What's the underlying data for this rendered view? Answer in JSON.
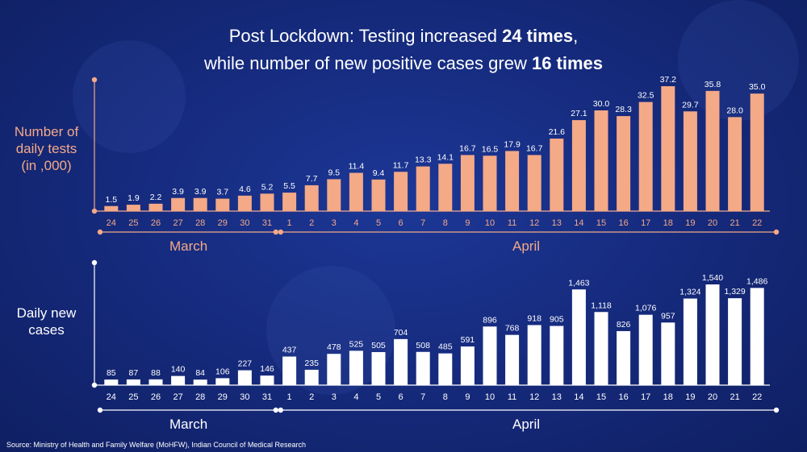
{
  "title": {
    "line1_prefix": "Post Lockdown: Testing increased ",
    "line1_bold": "24 times",
    "line1_suffix": ",",
    "line2_prefix": "while number of new positive cases grew ",
    "line2_bold": "16 times"
  },
  "colors": {
    "tests": "#f4a987",
    "cases": "#ffffff",
    "background": "#15297a"
  },
  "source": "Source: Ministry of Health and Family Welfare (MoHFW), Indian Council of Medical Research",
  "chart_data": [
    {
      "type": "bar",
      "name": "tests",
      "ylabel": "Number of daily tests (in ,000)",
      "ylabel_lines": [
        "Number of",
        "daily tests",
        "(in ,000)"
      ],
      "categories": [
        "24",
        "25",
        "26",
        "27",
        "28",
        "29",
        "30",
        "31",
        "1",
        "2",
        "3",
        "4",
        "5",
        "6",
        "7",
        "8",
        "9",
        "10",
        "11",
        "12",
        "13",
        "14",
        "15",
        "16",
        "17",
        "18",
        "19",
        "20",
        "21",
        "22"
      ],
      "values": [
        1.5,
        1.9,
        2.2,
        3.9,
        3.9,
        3.7,
        4.6,
        5.2,
        5.5,
        7.7,
        9.5,
        11.4,
        9.4,
        11.7,
        13.3,
        14.1,
        16.7,
        16.5,
        17.9,
        16.7,
        21.6,
        27.1,
        30.0,
        28.3,
        32.5,
        37.2,
        29.7,
        35.8,
        28.0,
        35.0
      ],
      "labels": [
        "1.5",
        "1.9",
        "2.2",
        "3.9",
        "3.9",
        "3.7",
        "4.6",
        "5.2",
        "5.5",
        "7.7",
        "9.5",
        "11.4",
        "9.4",
        "11.7",
        "13.3",
        "14.1",
        "16.7",
        "16.5",
        "17.9",
        "16.7",
        "21.6",
        "27.1",
        "30.0",
        "28.3",
        "32.5",
        "37.2",
        "29.7",
        "35.8",
        "28.0",
        "35.0"
      ],
      "months": [
        {
          "label": "March",
          "count": 8
        },
        {
          "label": "April",
          "count": 22
        }
      ]
    },
    {
      "type": "bar",
      "name": "cases",
      "ylabel": "Daily new cases",
      "ylabel_lines": [
        "Daily new",
        "cases"
      ],
      "categories": [
        "24",
        "25",
        "26",
        "27",
        "28",
        "29",
        "30",
        "31",
        "1",
        "2",
        "3",
        "4",
        "5",
        "6",
        "7",
        "8",
        "9",
        "10",
        "11",
        "12",
        "13",
        "14",
        "15",
        "16",
        "17",
        "18",
        "19",
        "20",
        "21",
        "22"
      ],
      "values": [
        85,
        87,
        88,
        140,
        84,
        106,
        227,
        146,
        437,
        235,
        478,
        525,
        505,
        704,
        508,
        485,
        591,
        896,
        768,
        918,
        905,
        1463,
        1118,
        826,
        1076,
        957,
        1324,
        1540,
        1329,
        1486
      ],
      "labels": [
        "85",
        "87",
        "88",
        "140",
        "84",
        "106",
        "227",
        "146",
        "437",
        "235",
        "478",
        "525",
        "505",
        "704",
        "508",
        "485",
        "591",
        "896",
        "768",
        "918",
        "905",
        "1,463",
        "1,118",
        "826",
        "1,076",
        "957",
        "1,324",
        "1,540",
        "1,329",
        "1,486"
      ],
      "months": [
        {
          "label": "March",
          "count": 8
        },
        {
          "label": "April",
          "count": 22
        }
      ]
    }
  ]
}
